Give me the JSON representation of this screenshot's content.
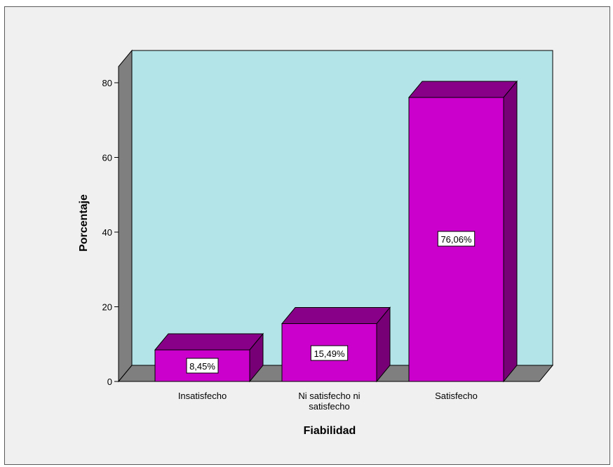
{
  "chart_data": {
    "type": "bar",
    "style": "3d",
    "categories": [
      "Insatisfecho",
      "Ni satisfecho ni satisfecho",
      "Satisfecho"
    ],
    "category_label_lines": [
      [
        "Insatisfecho"
      ],
      [
        "Ni satisfecho ni",
        "satisfecho"
      ],
      [
        "Satisfecho"
      ]
    ],
    "values": [
      8.45,
      15.49,
      76.06
    ],
    "data_labels": [
      "8,45%",
      "15,49%",
      "76,06%"
    ],
    "xlabel": "Fiabilidad",
    "ylabel": "Porcentaje",
    "ylim": [
      0,
      80
    ],
    "yticks": [
      0,
      20,
      40,
      60,
      80
    ],
    "grid": false,
    "colors": {
      "bar_front": "#cc00cc",
      "bar_top": "#880088",
      "bar_side": "#770077",
      "back_wall": "#b3e5e8",
      "side_wall": "#7f7f7f",
      "floor": "#7f7f7f",
      "frame": "#f0f0f0"
    }
  }
}
